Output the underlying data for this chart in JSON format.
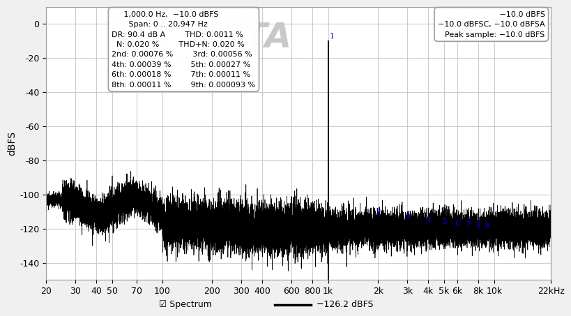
{
  "title": "RTA",
  "ylabel": "dBFS",
  "bg_color": "#f0f0f0",
  "plot_bg_color": "#ffffff",
  "grid_color": "#cccccc",
  "xlim_log": [
    20,
    22000
  ],
  "ylim": [
    -150,
    10
  ],
  "yticks": [
    0,
    -20,
    -40,
    -60,
    -80,
    -100,
    -120,
    -140
  ],
  "xtick_labels": [
    "20",
    "30",
    "40",
    "50",
    "70",
    "100",
    "200",
    "300",
    "400",
    "600",
    "800",
    "1k",
    "2k",
    "3k",
    "4k",
    "5k",
    "6k",
    "8k",
    "10k",
    "22kHz"
  ],
  "xtick_positions": [
    20,
    30,
    40,
    50,
    70,
    100,
    200,
    300,
    400,
    600,
    800,
    1000,
    2000,
    3000,
    4000,
    5000,
    6000,
    8000,
    10000,
    22000
  ],
  "legend_label": "Spectrum",
  "legend_value": "−126.2 dBFS",
  "fundamental_freq": 1000,
  "fundamental_db": -10,
  "harmonics": [
    {
      "freq": 2000,
      "db": -115,
      "label": "2"
    },
    {
      "freq": 3000,
      "db": -118,
      "label": "3"
    },
    {
      "freq": 4000,
      "db": -120,
      "label": "4"
    },
    {
      "freq": 5000,
      "db": -121,
      "label": "5"
    },
    {
      "freq": 6000,
      "db": -122,
      "label": "6"
    },
    {
      "freq": 7000,
      "db": -122.5,
      "label": "7"
    },
    {
      "freq": 8000,
      "db": -123,
      "label": "8"
    },
    {
      "freq": 9000,
      "db": -123.5,
      "label": "9"
    }
  ],
  "box1_line1": "1,000.0 Hz,  −10.0 dBFS",
  "box1_line2": "Span: 0 .. 20,947 Hz",
  "box1_line3a": "DR: 90.4 dB A",
  "box1_line3b": "THD: 0.0011 %",
  "box1_line4a": "N: 0.020 %",
  "box1_line4b": "THD+N: 0.020 %",
  "box1_line5a": "2nd: 0.00076 %",
  "box1_line5b": "3rd: 0.00056 %",
  "box1_line6a": "4th: 0.00039 %",
  "box1_line6b": "5th: 0.00027 %",
  "box1_line7a": "6th: 0.00018 %",
  "box1_line7b": "7th: 0.00011 %",
  "box1_line8a": "8th: 0.00011 %",
  "box1_line8b": "9th: 0.000093 %",
  "box2_line1": "−10.0 dBFS",
  "box2_line2": "−10.0 dBFSC, −10.0 dBFSA",
  "box2_line3": "Peak sample: −10.0 dBFS"
}
